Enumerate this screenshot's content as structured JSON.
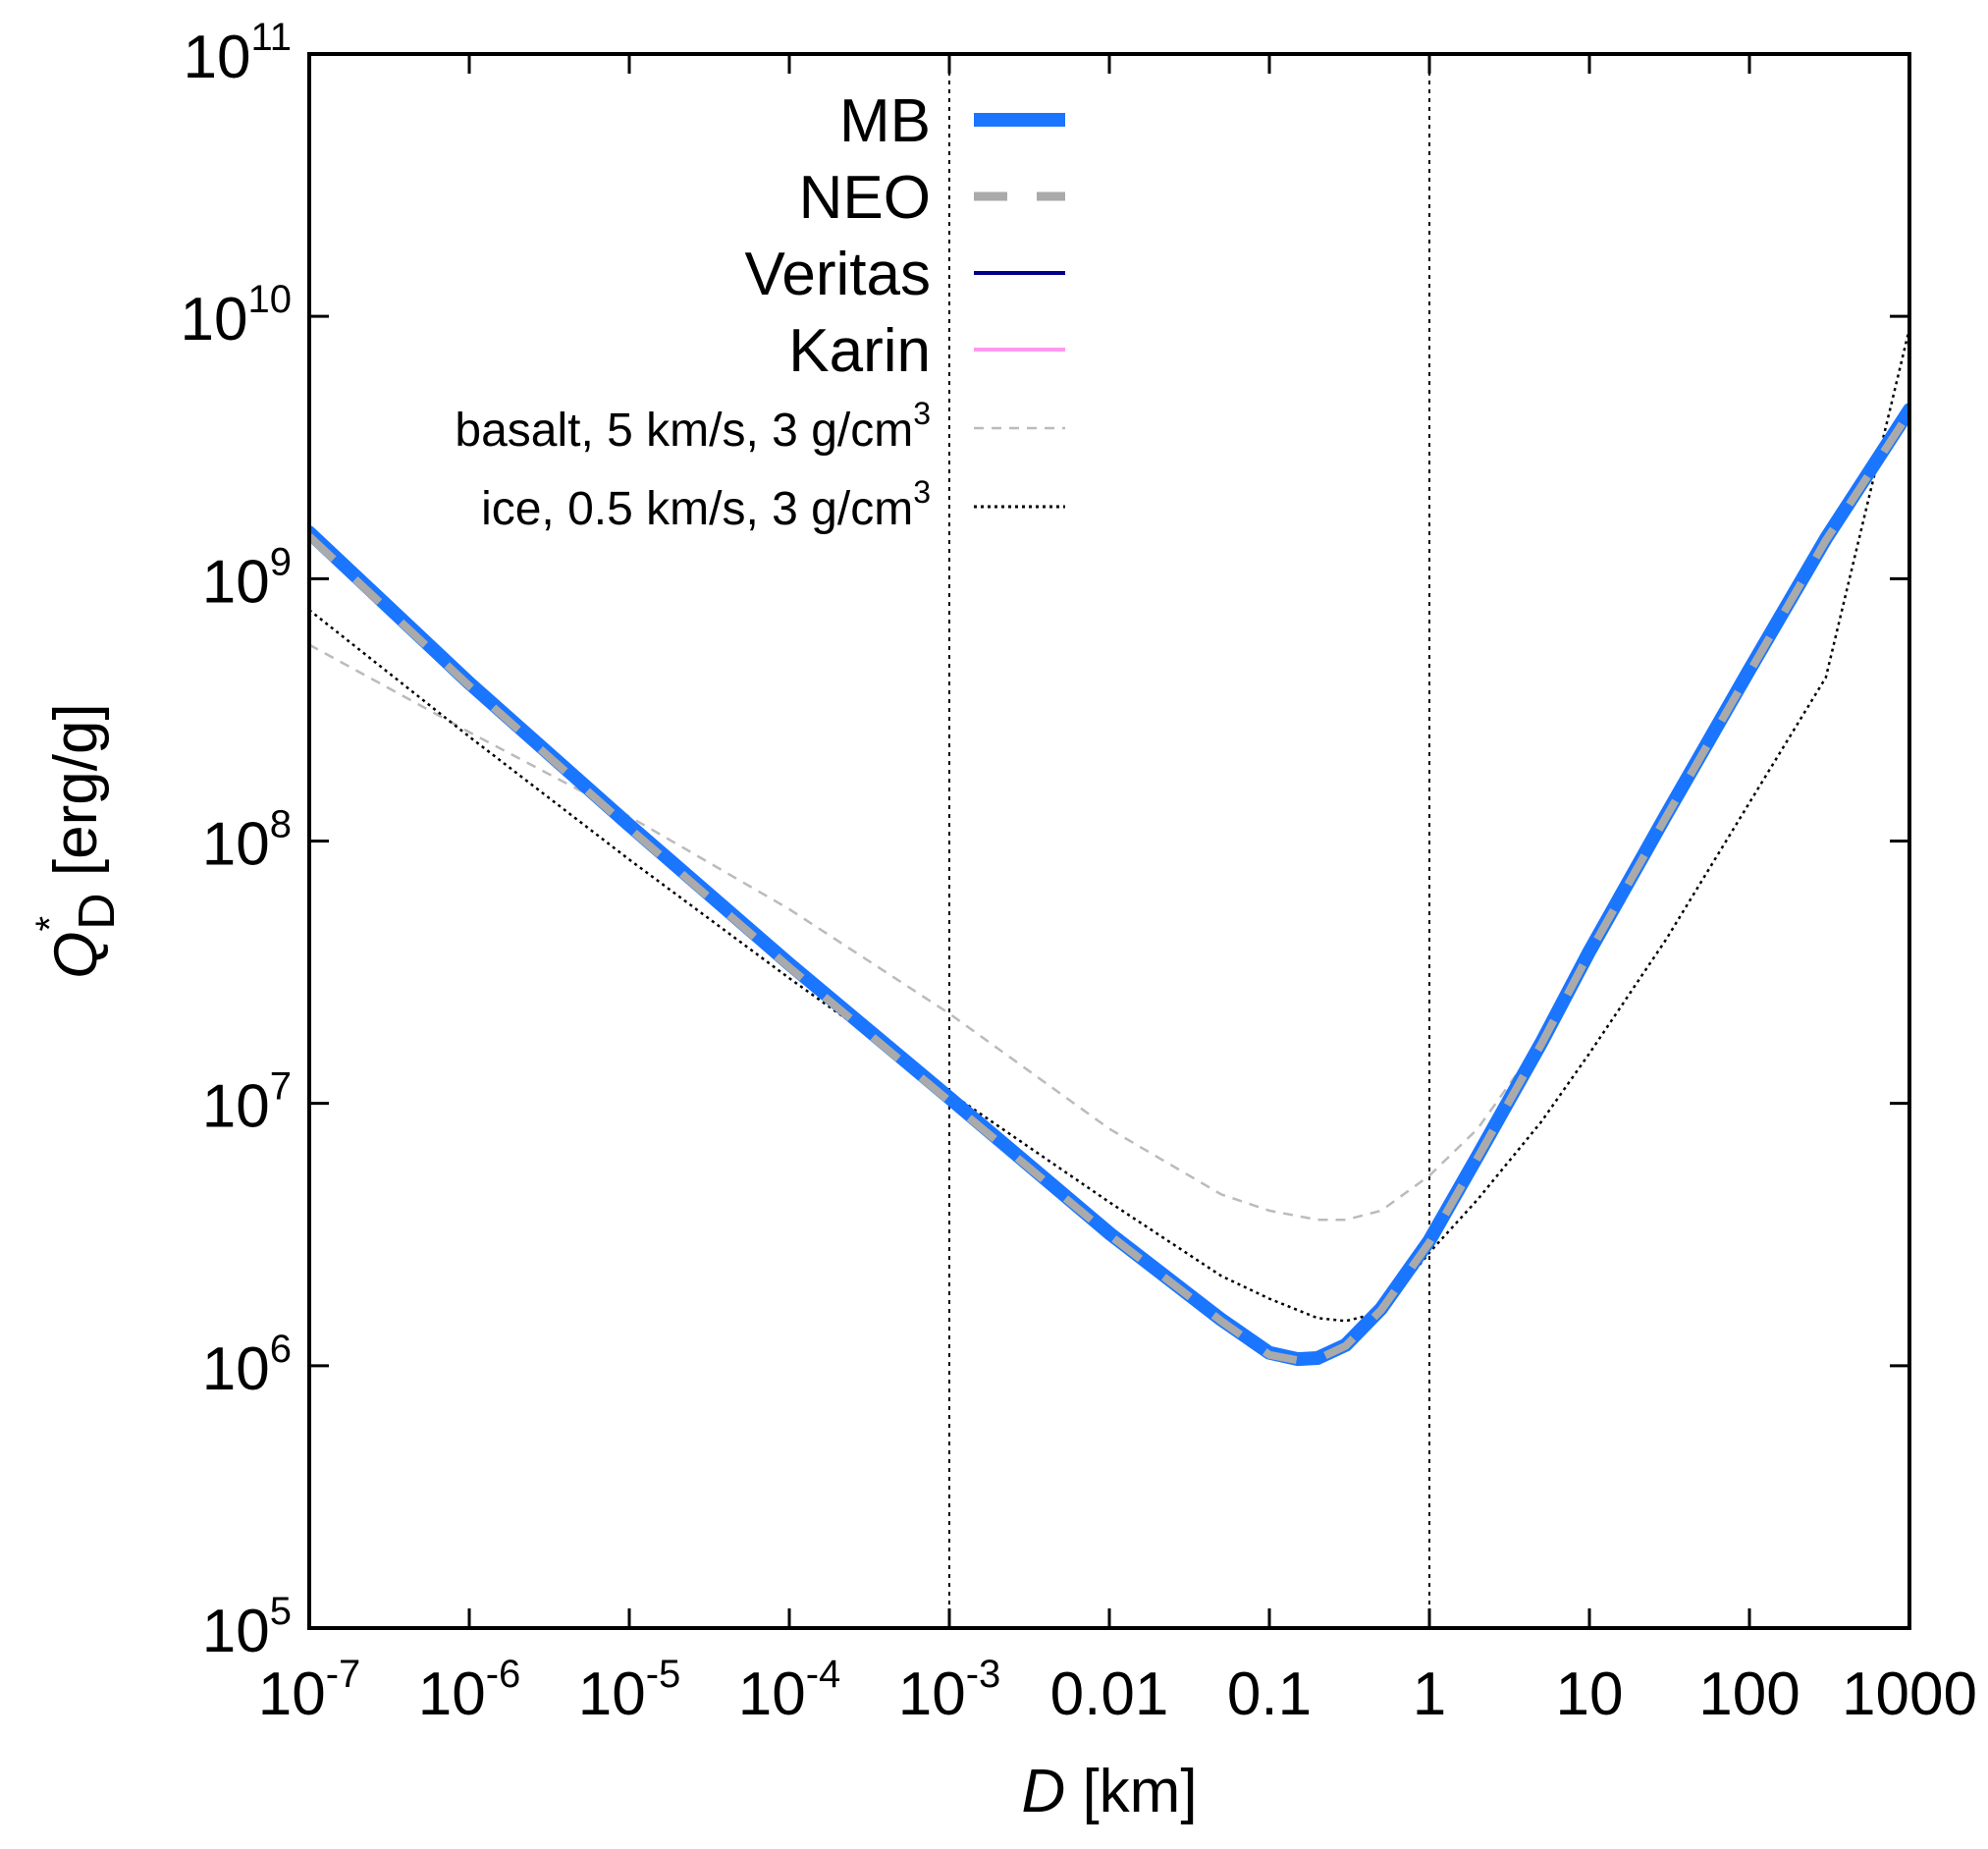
{
  "chart_data": {
    "type": "line",
    "xlabel": {
      "italic": "D",
      "rest": " [km]"
    },
    "ylabel": {
      "base": "Q",
      "superscript": "*",
      "subscript": "D",
      "rest": " [erg/g]"
    },
    "x_scale": "log",
    "y_scale": "log",
    "xlim": [
      1e-07,
      1000
    ],
    "ylim": [
      100000,
      100000000000
    ],
    "grid": false,
    "legend_position": "top-right",
    "x_ticks": [
      {
        "value": 1e-07,
        "base": "10",
        "exp": "-7"
      },
      {
        "value": 1e-06,
        "base": "10",
        "exp": "-6"
      },
      {
        "value": 1e-05,
        "base": "10",
        "exp": "-5"
      },
      {
        "value": 0.0001,
        "base": "10",
        "exp": "-4"
      },
      {
        "value": 0.001,
        "base": "10",
        "exp": "-3"
      },
      {
        "value": 0.01,
        "base": "0.01",
        "exp": ""
      },
      {
        "value": 0.1,
        "base": "0.1",
        "exp": ""
      },
      {
        "value": 1,
        "base": "1",
        "exp": ""
      },
      {
        "value": 10,
        "base": "10",
        "exp": ""
      },
      {
        "value": 100,
        "base": "100",
        "exp": ""
      },
      {
        "value": 1000,
        "base": "1000",
        "exp": ""
      }
    ],
    "y_ticks": [
      {
        "value": 100000,
        "base": "10",
        "exp": "5"
      },
      {
        "value": 1000000,
        "base": "10",
        "exp": "6"
      },
      {
        "value": 10000000,
        "base": "10",
        "exp": "7"
      },
      {
        "value": 100000000,
        "base": "10",
        "exp": "8"
      },
      {
        "value": 1000000000,
        "base": "10",
        "exp": "9"
      },
      {
        "value": 10000000000,
        "base": "10",
        "exp": "10"
      },
      {
        "value": 100000000000,
        "base": "10",
        "exp": "11"
      }
    ],
    "reference_lines_x": [
      0.001,
      1
    ],
    "series": [
      {
        "name": "MB",
        "color": "#1a75ff",
        "style": "solid-thick",
        "x": [
          1e-07,
          1e-06,
          1e-05,
          0.0001,
          0.001,
          0.01,
          0.05,
          0.1,
          0.15,
          0.2,
          0.3,
          0.5,
          1,
          2,
          5,
          10,
          30,
          100,
          300,
          1000
        ],
        "y": [
          1500000000,
          400000000,
          115000000,
          34000000,
          10500000,
          3200000,
          1500000,
          1120000,
          1060000,
          1070000,
          1200000,
          1650000,
          3000000,
          6300000,
          17000000,
          38000000,
          125000000,
          450000000,
          1420000000,
          4400000000
        ]
      },
      {
        "name": "NEO",
        "color": "#aaaaaa",
        "style": "dashed-thick",
        "x": [
          1e-07,
          1e-06,
          1e-05,
          0.0001,
          0.001,
          0.01,
          0.05,
          0.1,
          0.15,
          0.2,
          0.3,
          0.5,
          1,
          2,
          5,
          10,
          30,
          100,
          300,
          1000
        ],
        "y": [
          1450000000,
          390000000,
          112000000,
          33000000,
          10200000,
          3150000,
          1480000,
          1100000,
          1050000,
          1060000,
          1190000,
          1630000,
          2950000,
          6200000,
          16800000,
          37500000,
          123000000,
          440000000,
          1400000000,
          4300000000
        ]
      },
      {
        "name": "Veritas",
        "color": "#00008b",
        "style": "solid",
        "x": [],
        "y": []
      },
      {
        "name": "Karin",
        "color": "#ff99ee",
        "style": "solid",
        "x": [],
        "y": []
      },
      {
        "name": "basalt, 5 km/s, 3 g/cm",
        "name_sup": "3",
        "color": "#bbbbbb",
        "style": "dashed-thin",
        "x": [
          1e-07,
          1e-06,
          1e-05,
          0.0001,
          0.001,
          0.01,
          0.05,
          0.1,
          0.2,
          0.3,
          0.5,
          1,
          2,
          5,
          10,
          30,
          100,
          300,
          1000
        ],
        "y": [
          560000000,
          260000000,
          124000000,
          55000000,
          22000000,
          8000000,
          4500000,
          3900000,
          3600000,
          3600000,
          3900000,
          5300000,
          8000000,
          17500000,
          37000000,
          120000000,
          430000000,
          1380000000,
          4300000000
        ]
      },
      {
        "name": "ice, 0.5 km/s, 3 g/cm",
        "name_sup": "3",
        "color": "#000000",
        "style": "dotted",
        "x": [
          1e-07,
          1e-06,
          1e-05,
          0.0001,
          0.001,
          0.01,
          0.05,
          0.1,
          0.2,
          0.3,
          0.5,
          1,
          2,
          5,
          10,
          30,
          100,
          300,
          1000
        ],
        "y": [
          760000000,
          250000000,
          85000000,
          30000000,
          11000000,
          4200000,
          2200000,
          1800000,
          1520000,
          1480000,
          1600000,
          2700000,
          4300000,
          8500000,
          15500000,
          42000000,
          140000000,
          420000000,
          9000000000
        ]
      }
    ]
  }
}
